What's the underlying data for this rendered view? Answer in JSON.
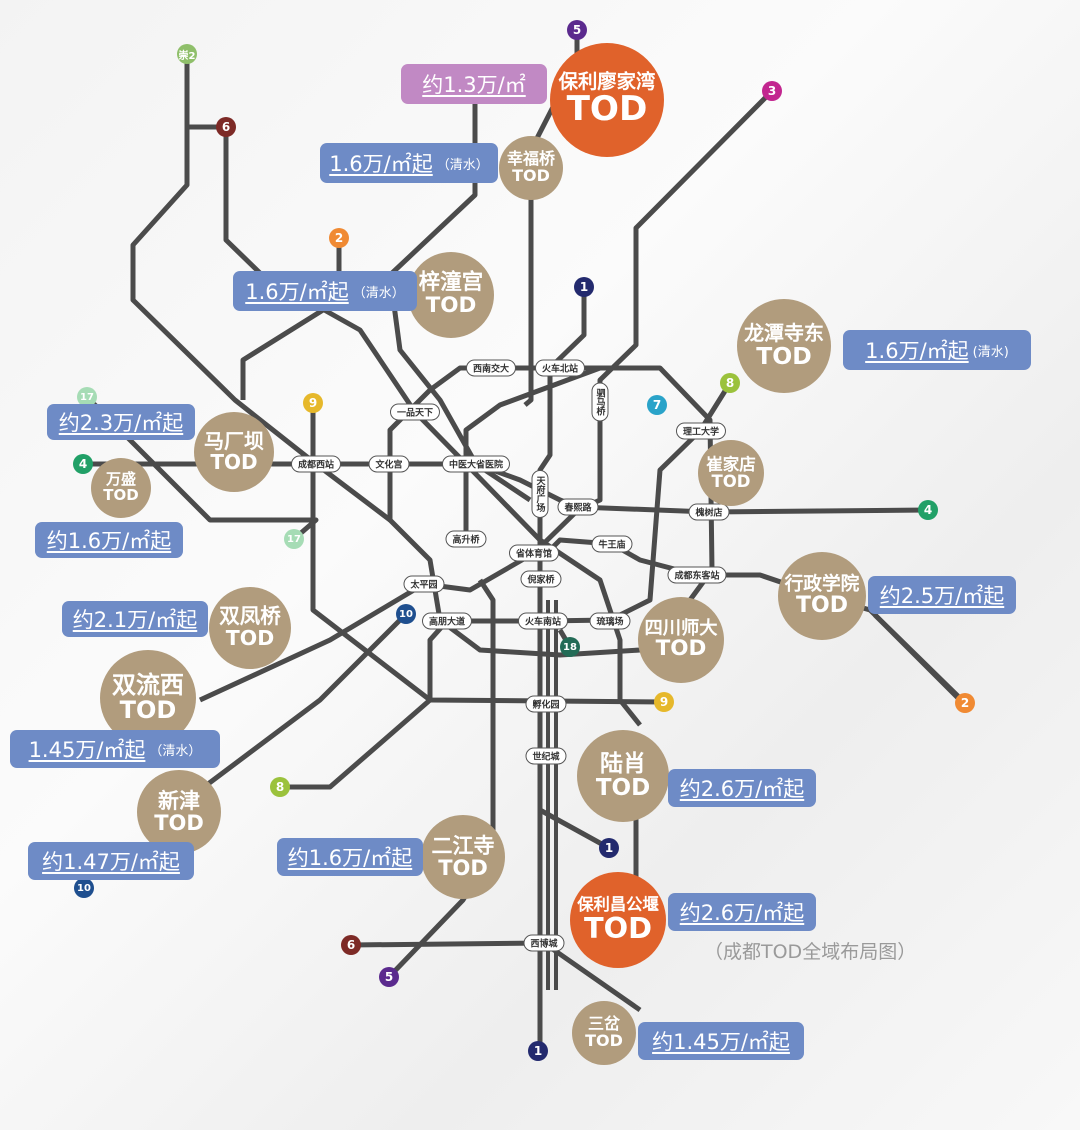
{
  "colors": {
    "line": "#4b4b4b",
    "tod": "#b19c7d",
    "featured": "#e0622b",
    "tag_blue": "#6e8bc6",
    "tag_purple": "#c189c4"
  },
  "tods": [
    {
      "name": "保利廖家湾",
      "suffix": "TOD",
      "featured": true
    },
    {
      "name": "幸福桥",
      "suffix": "TOD",
      "featured": false
    },
    {
      "name": "梓潼宫",
      "suffix": "TOD",
      "featured": false
    },
    {
      "name": "龙潭寺东",
      "suffix": "TOD",
      "featured": false
    },
    {
      "name": "马厂坝",
      "suffix": "TOD",
      "featured": false
    },
    {
      "name": "万盛",
      "suffix": "TOD",
      "featured": false
    },
    {
      "name": "崔家店",
      "suffix": "TOD",
      "featured": false
    },
    {
      "name": "行政学院",
      "suffix": "TOD",
      "featured": false
    },
    {
      "name": "双凤桥",
      "suffix": "TOD",
      "featured": false
    },
    {
      "name": "四川师大",
      "suffix": "TOD",
      "featured": false
    },
    {
      "name": "双流西",
      "suffix": "TOD",
      "featured": false
    },
    {
      "name": "陆肖",
      "suffix": "TOD",
      "featured": false
    },
    {
      "name": "新津",
      "suffix": "TOD",
      "featured": false
    },
    {
      "name": "二江寺",
      "suffix": "TOD",
      "featured": false
    },
    {
      "name": "保利昌公堰",
      "suffix": "TOD",
      "featured": true
    },
    {
      "name": "三岔",
      "suffix": "TOD",
      "featured": false
    }
  ],
  "prices": [
    {
      "text": "约1.3万/㎡",
      "note": "",
      "color": "purple"
    },
    {
      "text": "1.6万/㎡起",
      "note": "（清水）",
      "color": "blue"
    },
    {
      "text": "1.6万/㎡起",
      "note": "（清水）",
      "color": "blue"
    },
    {
      "text": "1.6万/㎡起",
      "note": "(清水)",
      "color": "blue"
    },
    {
      "text": "约2.3万/㎡起",
      "note": "",
      "color": "blue"
    },
    {
      "text": "约1.6万/㎡起",
      "note": "",
      "color": "blue"
    },
    {
      "text": "约2.5万/㎡起",
      "note": "",
      "color": "blue"
    },
    {
      "text": "约2.1万/㎡起",
      "note": "",
      "color": "blue"
    },
    {
      "text": "1.45万/㎡起",
      "note": "（清水）",
      "color": "blue"
    },
    {
      "text": "约2.6万/㎡起",
      "note": "",
      "color": "blue"
    },
    {
      "text": "约1.6万/㎡起",
      "note": "",
      "color": "blue"
    },
    {
      "text": "约1.47万/㎡起",
      "note": "",
      "color": "blue"
    },
    {
      "text": "约2.6万/㎡起",
      "note": "",
      "color": "blue"
    },
    {
      "text": "约1.45万/㎡起",
      "note": "",
      "color": "blue"
    }
  ],
  "stations": [
    "西南交大",
    "火车北站",
    "一品天下",
    "驷马桥",
    "理工大学",
    "文化宫",
    "中医大省医院",
    "天府广场",
    "春熙路",
    "槐树店",
    "高升桥",
    "省体育馆",
    "牛王庙",
    "倪家桥",
    "成都东客站",
    "太平园",
    "高朋大道",
    "火车南站",
    "琉璃场",
    "孵化园",
    "世纪城",
    "西博城",
    "成都西站"
  ],
  "badges": [
    {
      "label": "5",
      "color": "#5b2a8e"
    },
    {
      "label": "3",
      "color": "#c2268f"
    },
    {
      "label": "崇2",
      "color": "#8fbf6a"
    },
    {
      "label": "6",
      "color": "#7d2a26"
    },
    {
      "label": "2",
      "color": "#f08a33"
    },
    {
      "label": "1",
      "color": "#232a6e"
    },
    {
      "label": "8",
      "color": "#9bc23c"
    },
    {
      "label": "7",
      "color": "#2aa3c9"
    },
    {
      "label": "17",
      "color": "#a6dcb5"
    },
    {
      "label": "17",
      "color": "#a6dcb5"
    },
    {
      "label": "9",
      "color": "#e6b82b"
    },
    {
      "label": "9",
      "color": "#e6b82b"
    },
    {
      "label": "4",
      "color": "#21a067"
    },
    {
      "label": "4",
      "color": "#21a067"
    },
    {
      "label": "10",
      "color": "#1f4f8f"
    },
    {
      "label": "10",
      "color": "#1f4f8f"
    },
    {
      "label": "18",
      "color": "#236b56"
    },
    {
      "label": "2",
      "color": "#f08a33"
    },
    {
      "label": "8",
      "color": "#9bc23c"
    },
    {
      "label": "1",
      "color": "#232a6e"
    },
    {
      "label": "6",
      "color": "#7d2a26"
    },
    {
      "label": "5",
      "color": "#5b2a8e"
    },
    {
      "label": "1",
      "color": "#232a6e"
    }
  ],
  "caption": "（成都TOD全域布局图）"
}
